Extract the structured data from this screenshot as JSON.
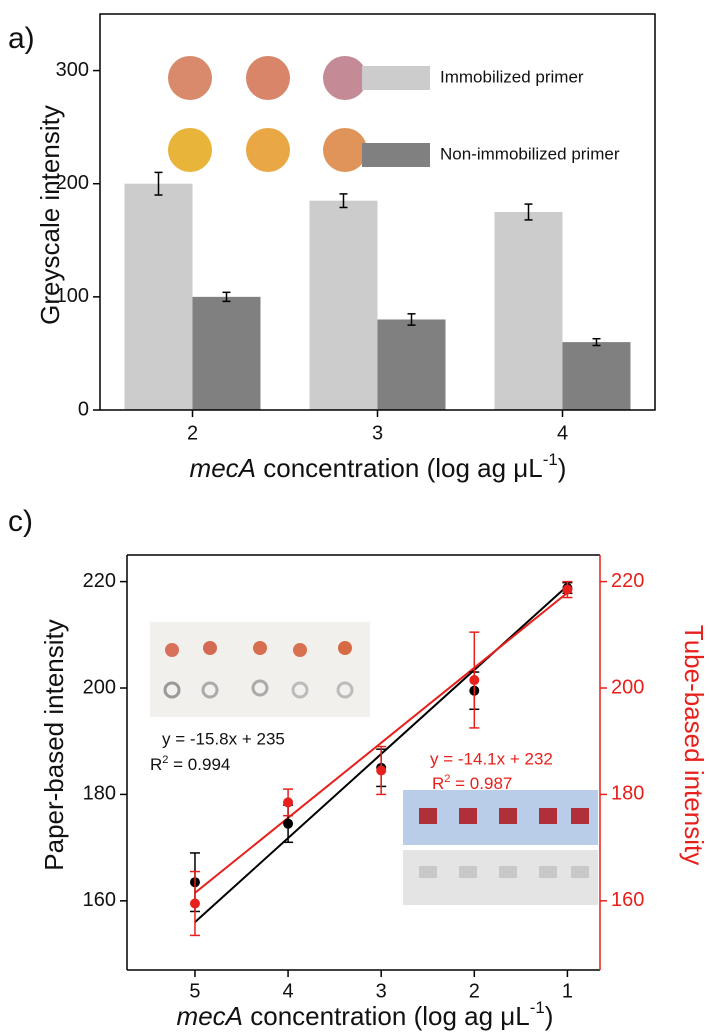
{
  "chart_data": [
    {
      "type": "bar",
      "panel_label": "a)",
      "y_label": "Greyscale intensity",
      "x_label": [
        "mecA",
        " concentration (log ag ",
        "μ",
        "L",
        "-1",
        ")"
      ],
      "categories": [
        "2",
        "3",
        "4"
      ],
      "series": [
        {
          "name": "Immobilized primer",
          "color": "#cccccc",
          "values": [
            200,
            185,
            175
          ],
          "errors": [
            10,
            6,
            7
          ]
        },
        {
          "name": "Non-immobilized primer",
          "color": "#808080",
          "values": [
            100,
            80,
            60
          ],
          "errors": [
            4,
            5,
            3
          ]
        }
      ],
      "ylim": [
        0,
        350
      ],
      "yticks": [
        0,
        100,
        200,
        300
      ]
    },
    {
      "type": "scatter",
      "panel_label": "c)",
      "y_label": "Paper-based intensity",
      "y2_label": "Tube-based intensity",
      "x_label": [
        "mecA",
        " concentration (log ag ",
        "μ",
        "L",
        "-1",
        ")"
      ],
      "xlim": [
        5.73,
        0.65
      ],
      "xticks": [
        5,
        4,
        3,
        2,
        1
      ],
      "ylim": [
        147,
        225
      ],
      "yticks": [
        160,
        180,
        200,
        220
      ],
      "y2lim": [
        147,
        225
      ],
      "y2ticks": [
        160,
        180,
        200,
        220
      ],
      "series": [
        {
          "color": "#000000",
          "x": [
            5,
            4,
            3,
            2,
            1
          ],
          "values": [
            163.5,
            174.5,
            185,
            199.5,
            218.8
          ],
          "errors": [
            5.5,
            3.5,
            3.5,
            3.5,
            1
          ]
        },
        {
          "color": "#e8201c",
          "axis": "y2",
          "x": [
            5,
            4,
            3,
            2,
            1
          ],
          "values": [
            159.5,
            178.5,
            184.5,
            201.5,
            218.5
          ],
          "errors": [
            6,
            2.5,
            4.5,
            9,
            1.5
          ]
        }
      ],
      "fits": [
        {
          "color": "#000000",
          "x": [
            5,
            1
          ],
          "values": [
            156,
            219.2
          ]
        },
        {
          "color": "#e8201c",
          "axis": "y2",
          "x": [
            5,
            1
          ],
          "values": [
            161.5,
            217.9
          ]
        }
      ],
      "equation_paper": "y = -15.8x + 235",
      "r2_paper": [
        "R",
        "2",
        " = 0.994"
      ],
      "equation_tube": "y = -14.1x + 232",
      "r2_tube": [
        "R",
        "2",
        " = 0.987"
      ]
    }
  ]
}
